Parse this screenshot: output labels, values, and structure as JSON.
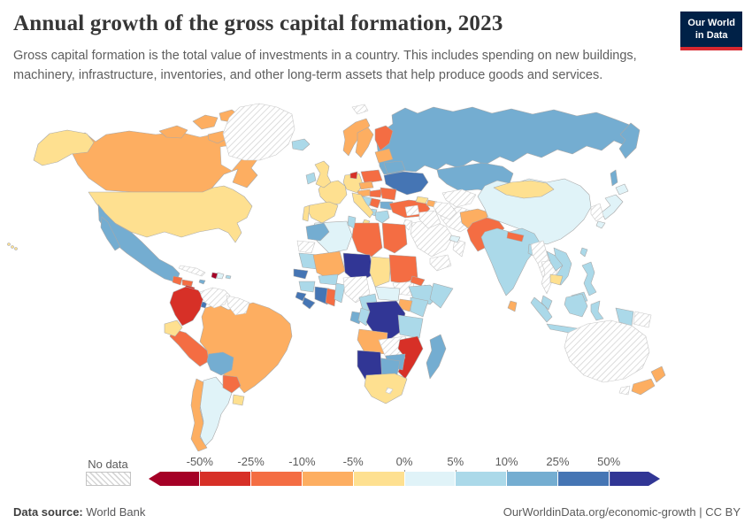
{
  "header": {
    "title": "Annual growth of the gross capital formation, 2023",
    "subtitle": "Gross capital formation is the total value of investments in a country. This includes spending on new buildings, machinery, infrastructure, inventories, and other long-term assets that help produce goods and services.",
    "logo": {
      "line1": "Our World",
      "line2": "in Data",
      "bg_color": "#002147",
      "accent_color": "#d7282f"
    }
  },
  "legend": {
    "no_data_label": "No data",
    "tick_labels": [
      "-50%",
      "-25%",
      "-10%",
      "-5%",
      "0%",
      "5%",
      "10%",
      "25%",
      "50%"
    ]
  },
  "footer": {
    "source_label": "Data source:",
    "source_value": "World Bank",
    "right_text": "OurWorldinData.org/economic-growth | CC BY"
  },
  "chart_data": {
    "type": "heatmap",
    "subtype": "choropleth_world_map",
    "title": "Annual growth of the gross capital formation, 2023",
    "unit": "%",
    "legend_position": "bottom",
    "bins": [
      {
        "label": "< -50%",
        "color": "#a50026"
      },
      {
        "label": "-50% to -25%",
        "color": "#d73027"
      },
      {
        "label": "-25% to -10%",
        "color": "#f46d43"
      },
      {
        "label": "-10% to -5%",
        "color": "#fdae61"
      },
      {
        "label": "-5% to 0%",
        "color": "#fee090"
      },
      {
        "label": "0% to 5%",
        "color": "#e0f3f8"
      },
      {
        "label": "5% to 10%",
        "color": "#abd9e9"
      },
      {
        "label": "10% to 25%",
        "color": "#74add1"
      },
      {
        "label": "25% to 50%",
        "color": "#4575b4"
      },
      {
        "label": "> 50%",
        "color": "#313695"
      }
    ],
    "no_data": {
      "label": "No data",
      "pattern": "hatched"
    },
    "countries": {
      "canada": 3,
      "united-states": 4,
      "mexico": 7,
      "guatemala": 2,
      "honduras": 2,
      "nicaragua": 1,
      "costa-rica": 1,
      "panama": 8,
      "jamaica": 7,
      "haiti": 0,
      "dominican-republic": 5,
      "puerto-rico": 6,
      "colombia": 1,
      "ecuador": 4,
      "peru": 2,
      "brazil": 3,
      "bolivia": 7,
      "paraguay": 2,
      "uruguay": 4,
      "argentina": 5,
      "chile": 3,
      "iceland": 6,
      "norway": 3,
      "sweden": 3,
      "finland": 2,
      "denmark": 1,
      "united-kingdom": 4,
      "ireland": 6,
      "germany": 4,
      "france": 4,
      "spain": 4,
      "portugal": 4,
      "italy": 4,
      "czechia": 3,
      "austria": 3,
      "poland": 2,
      "hungary": 2,
      "romania": 2,
      "serbia": 2,
      "bulgaria": 7,
      "croatia": 6,
      "albania": 6,
      "greece": 6,
      "ukraine": 8,
      "belarus": 7,
      "baltics": 3,
      "turkey": 2,
      "georgia": 4,
      "azerbaijan": 3,
      "russia": 7,
      "kazakhstan": 7,
      "kyrgyzstan": 4,
      "tajikistan": 4,
      "afghanistan": 3,
      "pakistan": 2,
      "india": 6,
      "nepal": 2,
      "bangladesh": 6,
      "sri-lanka": 3,
      "china": 5,
      "mongolia": 4,
      "laos": 6,
      "vietnam": 6,
      "cambodia": 4,
      "malaysia": 6,
      "indonesia": 6,
      "philippines": 6,
      "taiwan": 6,
      "japan": 5,
      "uae": 5,
      "morocco": 7,
      "algeria": 5,
      "tunisia": 6,
      "libya": 2,
      "egypt": 2,
      "mauritania": 6,
      "mali": 3,
      "niger": 9,
      "chad": 4,
      "sudan": 2,
      "eritrea": 2,
      "djibouti": 9,
      "ethiopia": 6,
      "somalia": 6,
      "senegal": 8,
      "guinea": 6,
      "sierra-leone": 8,
      "liberia": 8,
      "cote-divoire": 8,
      "burkina-faso": 6,
      "ghana": 2,
      "togo-benin": 6,
      "cameroon": 6,
      "central-african-republic": 5,
      "uganda": 3,
      "kenya": 6,
      "gabon": 7,
      "congo": 6,
      "dr-congo": 9,
      "tanzania": 6,
      "angola": 3,
      "malawi": 1,
      "mozambique": 1,
      "zimbabwe": 7,
      "botswana": 7,
      "namibia": 9,
      "south-africa": 4,
      "madagascar": 7,
      "new-zealand": 3
    },
    "no_data_countries": [
      "greenland",
      "svalbard",
      "venezuela",
      "guyana-suriname",
      "cuba",
      "australia",
      "saudi-arabia",
      "iran",
      "iraq",
      "syria",
      "jordan",
      "yemen",
      "oman",
      "turkmenistan",
      "uzbekistan",
      "myanmar",
      "thailand",
      "korea",
      "nigeria",
      "zambia",
      "western-sahara",
      "south-sudan",
      "papua-new-guinea",
      "lesotho"
    ]
  }
}
